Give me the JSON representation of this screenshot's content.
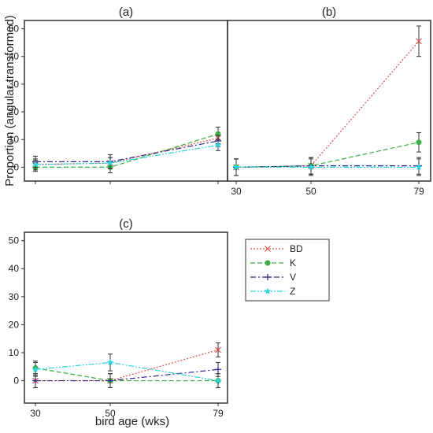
{
  "chart_data": [
    {
      "panel": "a",
      "type": "line",
      "title": "(a)",
      "ylabel": "Proportion (angular transformed)",
      "xlabel": "",
      "x": [
        30,
        50,
        79
      ],
      "xticklabels": [
        "",
        "",
        ""
      ],
      "ylim": [
        -5,
        53
      ],
      "yticks": [
        0,
        10,
        20,
        30,
        40,
        50
      ],
      "series": [
        {
          "name": "BD",
          "values": [
            1,
            1.5,
            10.5
          ],
          "err": [
            1.5,
            2,
            2
          ]
        },
        {
          "name": "K",
          "values": [
            0,
            0,
            12
          ],
          "err": [
            1.5,
            2,
            2.5
          ]
        },
        {
          "name": "V",
          "values": [
            2,
            2,
            9.5
          ],
          "err": [
            2,
            2.5,
            2
          ]
        },
        {
          "name": "Z",
          "values": [
            1,
            1.5,
            8
          ],
          "err": [
            2,
            2,
            2
          ]
        }
      ]
    },
    {
      "panel": "b",
      "type": "line",
      "title": "(b)",
      "xlabel": "",
      "x": [
        30,
        50,
        79
      ],
      "xticklabels": [
        "30",
        "50",
        "79"
      ],
      "ylim": [
        -5,
        53
      ],
      "series": [
        {
          "name": "BD",
          "values": [
            0,
            0.5,
            45.5
          ],
          "err": [
            3,
            3,
            5.5
          ]
        },
        {
          "name": "K",
          "values": [
            0,
            0.5,
            9
          ],
          "err": [
            3,
            3,
            3.5
          ]
        },
        {
          "name": "V",
          "values": [
            0,
            0.5,
            0.5
          ],
          "err": [
            3,
            3,
            3
          ]
        },
        {
          "name": "Z",
          "values": [
            0,
            0,
            0
          ],
          "err": [
            3,
            3,
            3
          ]
        }
      ]
    },
    {
      "panel": "c",
      "type": "line",
      "title": "(c)",
      "xlabel": "bird age (wks)",
      "x": [
        30,
        50,
        79
      ],
      "xticklabels": [
        "30",
        "50",
        "79"
      ],
      "ylim": [
        -8,
        53
      ],
      "yticks": [
        0,
        10,
        20,
        30,
        40,
        50
      ],
      "series": [
        {
          "name": "BD",
          "values": [
            0,
            0,
            11
          ],
          "err": [
            2.5,
            2.5,
            2.5
          ]
        },
        {
          "name": "K",
          "values": [
            4.5,
            0,
            0
          ],
          "err": [
            2.5,
            2.5,
            2.5
          ]
        },
        {
          "name": "V",
          "values": [
            0,
            0,
            4
          ],
          "err": [
            2.5,
            2.5,
            2.5
          ]
        },
        {
          "name": "Z",
          "values": [
            4,
            6.5,
            0
          ],
          "err": [
            2.5,
            3,
            2.5
          ]
        }
      ]
    }
  ],
  "legend": {
    "placement": "right of panel (c)",
    "entries": [
      {
        "name": "BD",
        "color": "#d9534f",
        "marker": "x-mark",
        "dash": "dotted"
      },
      {
        "name": "K",
        "color": "#3cb043",
        "marker": "filled-circle",
        "dash": "dashed"
      },
      {
        "name": "V",
        "color": "#2c2c8c",
        "marker": "plus",
        "dash": "dash-dot"
      },
      {
        "name": "Z",
        "color": "#2fd4e0",
        "marker": "star",
        "dash": "dash-dot-dot"
      }
    ]
  }
}
